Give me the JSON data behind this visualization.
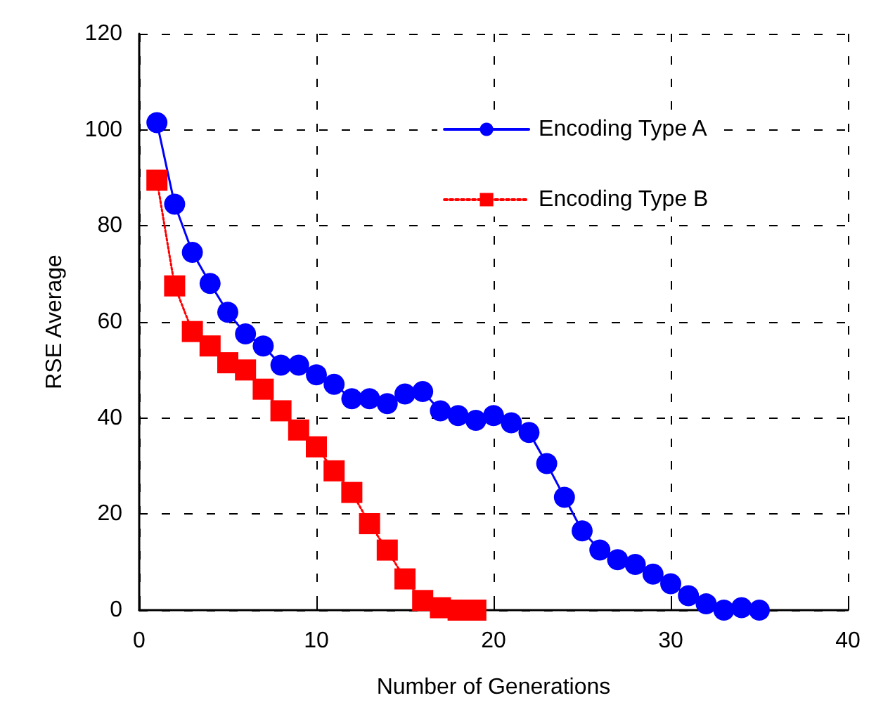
{
  "chart_data": {
    "type": "line",
    "xlabel": "Number of Generations",
    "ylabel": "RSE Average",
    "xlim": [
      0,
      40
    ],
    "xticks": [
      0,
      10,
      20,
      30,
      40
    ],
    "ylim": [
      0,
      120
    ],
    "yticks": [
      0,
      20,
      40,
      60,
      80,
      100,
      120
    ],
    "grid": true,
    "legend": "top right",
    "series": [
      {
        "name": "Encoding Type A",
        "color": "#0000ff",
        "marker": "circle",
        "line_style": "solid",
        "x": [
          1,
          2,
          3,
          4,
          5,
          6,
          7,
          8,
          9,
          10,
          11,
          12,
          13,
          14,
          15,
          16,
          17,
          18,
          19,
          20,
          21,
          22,
          23,
          24,
          25,
          26,
          27,
          28,
          29,
          30,
          31,
          32,
          33,
          34,
          35
        ],
        "values": [
          101.5,
          84.5,
          74.5,
          68,
          62,
          57.5,
          55,
          51,
          51,
          49,
          47,
          44,
          44,
          43,
          45,
          45.5,
          41.5,
          40.5,
          39.5,
          40.5,
          39,
          37,
          30.5,
          23.5,
          16.5,
          12.5,
          10.5,
          9.5,
          7.5,
          5.5,
          3,
          1.3,
          0,
          0.5,
          0
        ]
      },
      {
        "name": "Encoding Type B",
        "color": "#ff0000",
        "marker": "square",
        "line_style": "dotted",
        "x": [
          1,
          2,
          3,
          4,
          5,
          6,
          7,
          8,
          9,
          10,
          11,
          12,
          13,
          14,
          15,
          16,
          17,
          18,
          19
        ],
        "values": [
          89.5,
          67.5,
          58,
          55,
          51.5,
          50,
          46,
          41.5,
          37.5,
          34,
          29,
          24.5,
          18,
          12.5,
          6.5,
          2,
          0.5,
          0,
          0
        ]
      }
    ]
  }
}
